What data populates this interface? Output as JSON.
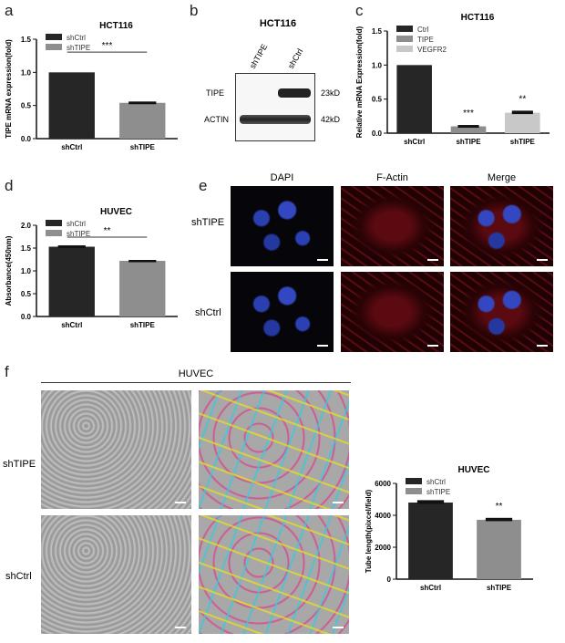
{
  "panels": {
    "a": "a",
    "b": "b",
    "c": "c",
    "d": "d",
    "e": "e",
    "f": "f"
  },
  "blot": {
    "title": "HCT116",
    "columns": [
      "shTIPE",
      "shCtrl"
    ],
    "rows": [
      "TIPE",
      "ACTIN"
    ],
    "sizes": [
      "23kD",
      "42kD"
    ]
  },
  "microscopy": {
    "columns": [
      "DAPI",
      "F-Actin",
      "Merge"
    ],
    "rows": [
      "shTIPE",
      "shCtrl"
    ]
  },
  "tube": {
    "title": "HUVEC",
    "rows": [
      "shTIPE",
      "shCtrl"
    ]
  },
  "chart_data": [
    {
      "type": "bar",
      "title": "HCT116",
      "ylabel": "TIPE mRNA expression(fold)",
      "categories": [
        "shCtrl",
        "shTIPE"
      ],
      "values": [
        1.0,
        0.54
      ],
      "errors": [
        0,
        0.02
      ],
      "colors": [
        "#262626",
        "#8e8e8e"
      ],
      "legend": [
        "shCtrl",
        "shTIPE"
      ],
      "ylim": [
        0,
        1.5
      ],
      "yticks": [
        "0.0",
        "0.5",
        "1.0",
        "1.5"
      ],
      "significance": [
        {
          "label": "***",
          "bracket": true
        }
      ]
    },
    {
      "type": "bar",
      "title": "HCT116",
      "ylabel": "Relative mRNA Expression(fold)",
      "categories": [
        "shCtrl",
        "shTIPE",
        "shTIPE"
      ],
      "values": [
        1.0,
        0.1,
        0.3
      ],
      "errors": [
        0,
        0.02,
        0.03
      ],
      "colors": [
        "#262626",
        "#8e8e8e",
        "#c8c8c8"
      ],
      "legend": [
        "Ctrl",
        "TIPE",
        "VEGFR2"
      ],
      "ylim": [
        0,
        1.5
      ],
      "yticks": [
        "0.0",
        "0.5",
        "1.0",
        "1.5"
      ],
      "significance": [
        {
          "label": "",
          "bar": 0
        },
        {
          "label": "***",
          "bar": 1
        },
        {
          "label": "**",
          "bar": 2
        }
      ]
    },
    {
      "type": "bar",
      "title": "HUVEC",
      "ylabel": "Absorbance(450nm)",
      "categories": [
        "shCtrl",
        "shTIPE"
      ],
      "values": [
        1.53,
        1.22
      ],
      "errors": [
        0.03,
        0.02
      ],
      "colors": [
        "#262626",
        "#8e8e8e"
      ],
      "legend": [
        "shCtrl",
        "shTIPE"
      ],
      "ylim": [
        0,
        2.0
      ],
      "yticks": [
        "0.0",
        "0.5",
        "1.0",
        "1.5",
        "2.0"
      ],
      "significance": [
        {
          "label": "**",
          "bracket": true
        }
      ]
    },
    {
      "type": "bar",
      "title": "HUVEC",
      "ylabel": "Tube length(pixcel/field)",
      "categories": [
        "shCtrl",
        "shTIPE"
      ],
      "values": [
        4800,
        3720
      ],
      "errors": [
        150,
        120
      ],
      "colors": [
        "#262626",
        "#8e8e8e"
      ],
      "legend": [
        "shCtrl",
        "shTIPE"
      ],
      "ylim": [
        0,
        6000
      ],
      "yticks": [
        "0",
        "2000",
        "4000",
        "6000"
      ],
      "significance": [
        {
          "label": "",
          "bar": 0
        },
        {
          "label": "**",
          "bar": 1
        }
      ]
    }
  ]
}
